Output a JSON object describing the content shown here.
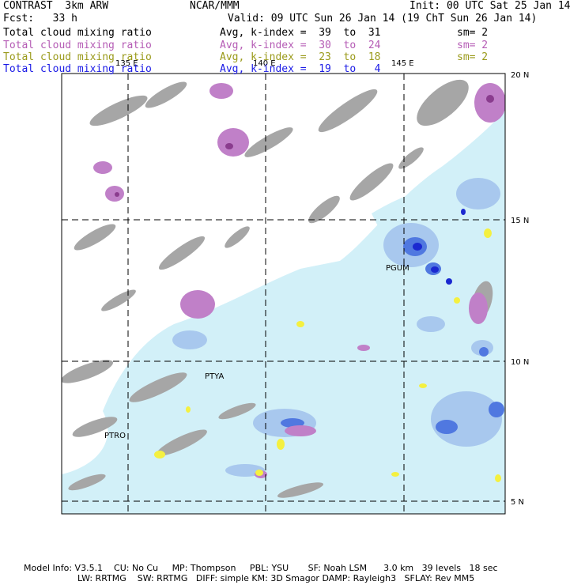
{
  "header": {
    "model": "CONTRAST  3km ARW",
    "org": "NCAR/MMM",
    "init": "Init: 00 UTC Sat 25 Jan 14",
    "fcst": "Fcst:   33 h",
    "valid": "Valid: 09 UTC Sun 26 Jan 14 (19 ChT Sun 26 Jan 14)"
  },
  "fields": [
    {
      "name": "Total cloud mixing ratio",
      "avg": "Avg, k-index =  39  to  31",
      "sm": "sm= 2",
      "color": "#000000"
    },
    {
      "name": "Total cloud mixing ratio",
      "avg": "Avg, k-index =  30  to  24",
      "sm": "sm= 2",
      "color": "#b55cb5"
    },
    {
      "name": "Total cloud mixing ratio",
      "avg": "Avg, k-index =  23  to  18",
      "sm": "sm= 2",
      "color": "#9a9a1a"
    },
    {
      "name": "Total cloud mixing ratio",
      "avg": "Avg, k-index =  19  to   4",
      "sm": "",
      "color": "#1a1ae6"
    }
  ],
  "map": {
    "lon_labels": [
      "135 E",
      "140 E",
      "145 E"
    ],
    "lat_labels": [
      "20 N",
      "15 N",
      "10 N",
      "5 N"
    ],
    "stations": [
      "PGUM",
      "PTYA",
      "PTRO"
    ]
  },
  "model_info": {
    "line1": "Model Info: V3.5.1    CU: No Cu     MP: Thompson     PBL: YSU       SF: Noah LSM      3.0 km   39 levels   18 sec",
    "line2": "LW: RRTMG    SW: RRTMG   DIFF: simple KM: 3D Smagor DAMP: Rayleigh3   SFLAY: Rev MM5"
  }
}
